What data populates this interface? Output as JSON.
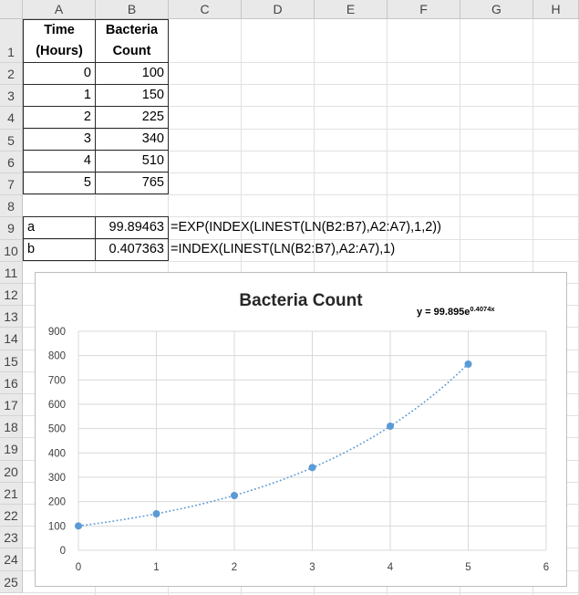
{
  "columns": [
    "A",
    "B",
    "C",
    "D",
    "E",
    "F",
    "G",
    "H"
  ],
  "rows": [
    "1",
    "2",
    "3",
    "4",
    "5",
    "6",
    "7",
    "8",
    "9",
    "10",
    "11",
    "12",
    "13",
    "14",
    "15",
    "16",
    "17",
    "18",
    "19",
    "20",
    "21",
    "22",
    "23",
    "24",
    "25"
  ],
  "table": {
    "header_a_line1": "Time",
    "header_a_line2": "(Hours)",
    "header_b_line1": "Bacteria",
    "header_b_line2": "Count",
    "rows": [
      {
        "time": "0",
        "count": "100"
      },
      {
        "time": "1",
        "count": "150"
      },
      {
        "time": "2",
        "count": "225"
      },
      {
        "time": "3",
        "count": "340"
      },
      {
        "time": "4",
        "count": "510"
      },
      {
        "time": "5",
        "count": "765"
      }
    ]
  },
  "coefficients": {
    "a_label": "a",
    "a_value": "99.89463",
    "a_formula": "=EXP(INDEX(LINEST(LN(B2:B7),A2:A7),1,2))",
    "b_label": "b",
    "b_value": "0.407363",
    "b_formula": "=INDEX(LINEST(LN(B2:B7),A2:A7),1)"
  },
  "chart_data": {
    "type": "scatter",
    "title": "Bacteria Count",
    "trendline_label_base": "y = 99.895e",
    "trendline_label_exp": "0.4074x",
    "trendline": {
      "type": "exponential",
      "a": 99.895,
      "b": 0.4074
    },
    "x": [
      0,
      1,
      2,
      3,
      4,
      5
    ],
    "y": [
      100,
      150,
      225,
      340,
      510,
      765
    ],
    "xlim": [
      0,
      6
    ],
    "ylim": [
      0,
      900
    ],
    "xticks": [
      "0",
      "1",
      "2",
      "3",
      "4",
      "5",
      "6"
    ],
    "yticks": [
      "0",
      "100",
      "200",
      "300",
      "400",
      "500",
      "600",
      "700",
      "800",
      "900"
    ],
    "grid": true,
    "colors": {
      "marker": "#5b9bd5",
      "trendline": "#5b9bd5",
      "grid": "#d9d9d9"
    }
  }
}
